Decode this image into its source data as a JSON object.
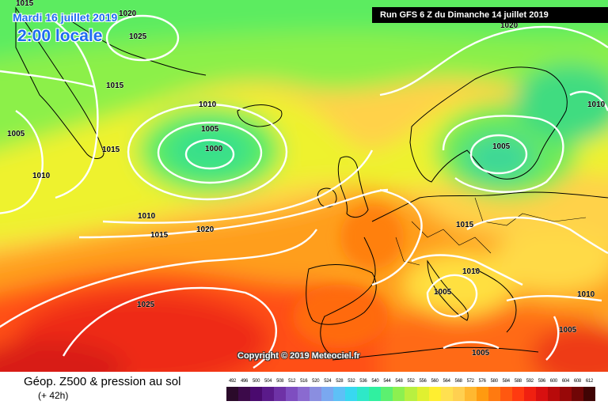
{
  "header": {
    "date": "Mardi 16 juillet 2019",
    "time": "2:00 locale",
    "run": "Run GFS 6 Z du Dimanche 14 juillet 2019",
    "copyright": "Copyright © 2019 Meteociel.fr"
  },
  "legend": {
    "title": "Géop. Z500 & pression au sol",
    "subtitle": "(+ 42h)",
    "scale": [
      {
        "value": "492",
        "color": "#2a0a2a"
      },
      {
        "value": "496",
        "color": "#3c0a4a"
      },
      {
        "value": "500",
        "color": "#4a0a6e"
      },
      {
        "value": "504",
        "color": "#5a1a8a"
      },
      {
        "value": "508",
        "color": "#6e32a6"
      },
      {
        "value": "512",
        "color": "#7e4ec0"
      },
      {
        "value": "516",
        "color": "#8a6ad0"
      },
      {
        "value": "520",
        "color": "#8a8ee0"
      },
      {
        "value": "524",
        "color": "#7aa8f0"
      },
      {
        "value": "528",
        "color": "#5ec0f6"
      },
      {
        "value": "532",
        "color": "#38d8f0"
      },
      {
        "value": "536",
        "color": "#2ee8c8"
      },
      {
        "value": "540",
        "color": "#30f0a0"
      },
      {
        "value": "544",
        "color": "#5cf070"
      },
      {
        "value": "548",
        "color": "#8cf050"
      },
      {
        "value": "552",
        "color": "#b8f040"
      },
      {
        "value": "556",
        "color": "#e0f030"
      },
      {
        "value": "560",
        "color": "#ffee30"
      },
      {
        "value": "564",
        "color": "#ffe050"
      },
      {
        "value": "568",
        "color": "#ffd050"
      },
      {
        "value": "572",
        "color": "#ffb830"
      },
      {
        "value": "576",
        "color": "#ff9a10"
      },
      {
        "value": "580",
        "color": "#ff7a10"
      },
      {
        "value": "584",
        "color": "#ff5810"
      },
      {
        "value": "588",
        "color": "#ff3a10"
      },
      {
        "value": "592",
        "color": "#f02010"
      },
      {
        "value": "596",
        "color": "#d81010"
      },
      {
        "value": "600",
        "color": "#b80a0a"
      },
      {
        "value": "604",
        "color": "#980808"
      },
      {
        "value": "608",
        "color": "#700606"
      },
      {
        "value": "612",
        "color": "#400404"
      }
    ]
  },
  "isobar_labels": [
    {
      "text": "1015"
    },
    {
      "text": "1025"
    },
    {
      "text": "1015"
    },
    {
      "text": "1010"
    },
    {
      "text": "1005"
    },
    {
      "text": "1000"
    },
    {
      "text": "1015"
    },
    {
      "text": "1005"
    },
    {
      "text": "1010"
    },
    {
      "text": "1010"
    },
    {
      "text": "1015"
    },
    {
      "text": "1020"
    },
    {
      "text": "1025"
    },
    {
      "text": "1020"
    },
    {
      "text": "1005"
    },
    {
      "text": "1010"
    },
    {
      "text": "1015"
    },
    {
      "text": "1010"
    },
    {
      "text": "1005"
    },
    {
      "text": "1010"
    },
    {
      "text": "1005"
    },
    {
      "text": "1005"
    },
    {
      "text": "1020"
    }
  ]
}
